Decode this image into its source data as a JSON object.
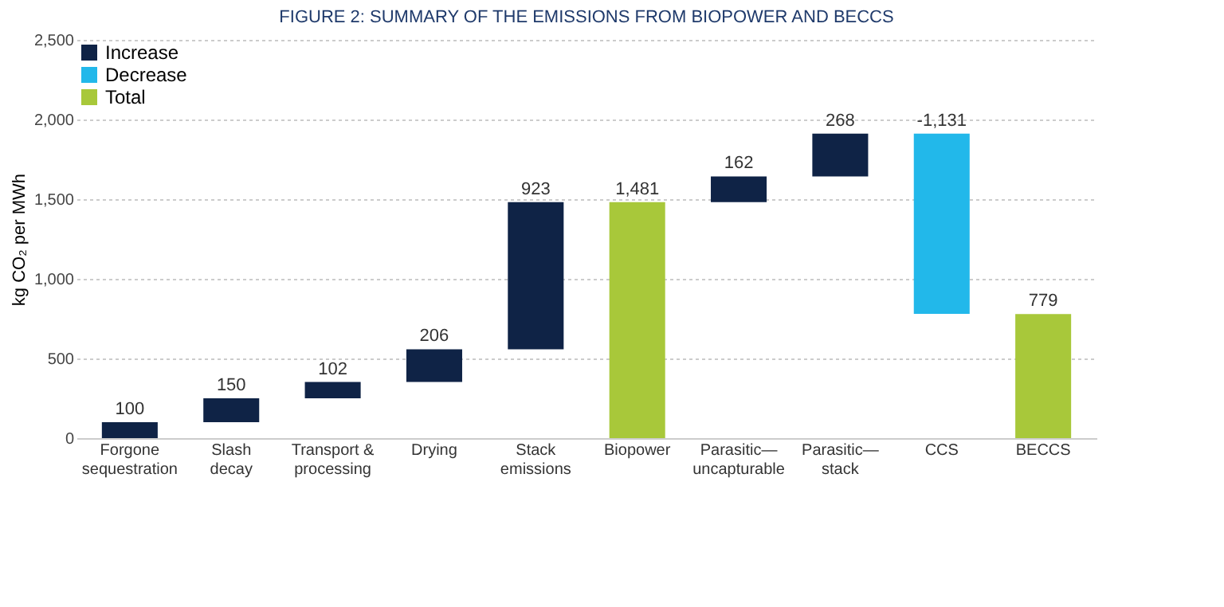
{
  "chart_data": {
    "type": "bar",
    "title": "FIGURE 2: SUMMARY OF THE EMISSIONS FROM BIOPOWER AND BECCS",
    "ylabel": "kg CO₂ per MWh",
    "categories": [
      "Forgone\nsequestration",
      "Slash\ndecay",
      "Transport &\nprocessing",
      "Drying",
      "Stack\nemissions",
      "Biopower",
      "Parasitic—\nuncapturable",
      "Parasitic—\nstack",
      "CCS",
      "BECCS"
    ],
    "stacked": true,
    "series": [
      {
        "name": "Increase",
        "color": "#0f2346",
        "base": [
          0,
          100,
          250,
          352,
          558,
          null,
          1481,
          1643,
          null,
          null
        ],
        "values": [
          100,
          150,
          102,
          206,
          923,
          null,
          162,
          268,
          null,
          null
        ],
        "value_labels": [
          "100",
          "150",
          "102",
          "206",
          "923",
          null,
          "162",
          "268",
          null,
          null
        ]
      },
      {
        "name": "Decrease",
        "color": "#22b8ea",
        "base": [
          null,
          null,
          null,
          null,
          null,
          null,
          null,
          null,
          1911,
          null
        ],
        "values": [
          null,
          null,
          null,
          null,
          null,
          null,
          null,
          null,
          -1131,
          null
        ],
        "value_labels": [
          null,
          null,
          null,
          null,
          null,
          null,
          null,
          null,
          "-1,131",
          null
        ]
      },
      {
        "name": "Total",
        "color": "#a8c83a",
        "base": [
          null,
          null,
          null,
          null,
          null,
          0,
          null,
          null,
          null,
          0
        ],
        "values": [
          null,
          null,
          null,
          null,
          null,
          1481,
          null,
          null,
          null,
          779
        ],
        "value_labels": [
          null,
          null,
          null,
          null,
          null,
          "1,481",
          null,
          null,
          null,
          "779"
        ]
      }
    ],
    "ylim": [
      0,
      2500
    ],
    "yticks": [
      0,
      500,
      {
        "value": 1000,
        "label": "1,000"
      },
      {
        "value": 1500,
        "label": "1,500"
      },
      {
        "value": 2000,
        "label": "2,000"
      },
      {
        "value": 2500,
        "label": "2,500"
      }
    ],
    "grid": "y",
    "legend": "top left"
  }
}
